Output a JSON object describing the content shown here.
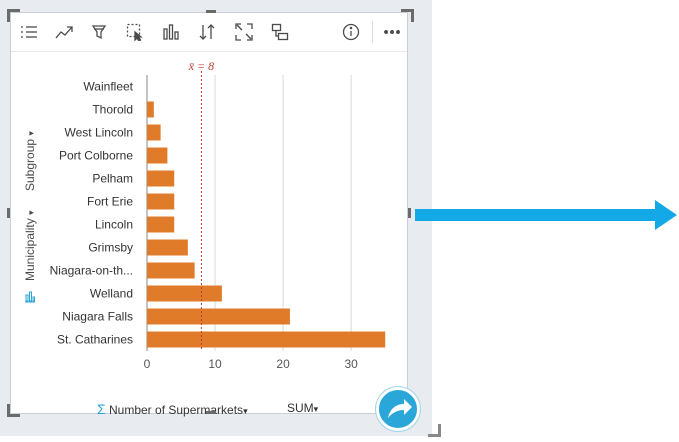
{
  "toolbar": {
    "icons": [
      "legend-list-icon",
      "trend-icon",
      "filter-icon",
      "select-icon",
      "bar-chart-type-icon",
      "sort-icon",
      "maximize-icon",
      "flip-card-icon",
      "info-icon",
      "more-icon"
    ]
  },
  "axis_controls": {
    "subgroup_label": "Subgroup",
    "municipality_label": "Municipality",
    "x_field_label": "Number of Supermarkets",
    "sum_label": "SUM",
    "sigma_symbol": "Σ"
  },
  "chart_data": {
    "type": "bar",
    "orientation": "horizontal",
    "categories": [
      "Wainfleet",
      "Thorold",
      "West Lincoln",
      "Port Colborne",
      "Pelham",
      "Fort Erie",
      "Lincoln",
      "Grimsby",
      "Niagara-on-th...",
      "Welland",
      "Niagara Falls",
      "St. Catharines"
    ],
    "values": [
      0,
      1,
      2,
      3,
      4,
      4,
      4,
      6,
      7,
      11,
      21,
      35
    ],
    "xlim": [
      0,
      36
    ],
    "xticks": [
      0,
      10,
      20,
      30
    ],
    "mean_line": {
      "value": 8,
      "label": "x̄ = 8"
    },
    "grid": true,
    "colors": {
      "bar": "#e07b2a",
      "mean": "#c0392b",
      "grid": "#d9d9d9"
    }
  }
}
